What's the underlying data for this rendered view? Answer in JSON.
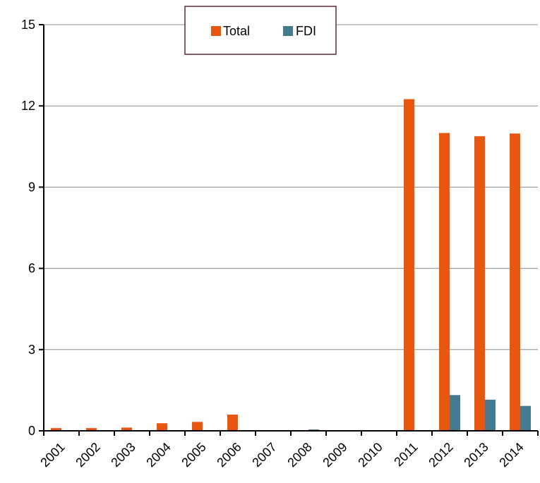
{
  "chart_data": {
    "type": "bar",
    "categories": [
      "2001",
      "2002",
      "2003",
      "2004",
      "2005",
      "2006",
      "2007",
      "2008",
      "2009",
      "2010",
      "2011",
      "2012",
      "2013",
      "2014"
    ],
    "series": [
      {
        "name": "Total",
        "color": "#E8570F",
        "values": [
          0.1,
          0.1,
          0.12,
          0.28,
          0.33,
          0.6,
          0,
          0,
          0,
          0,
          12.25,
          11.0,
          10.88,
          10.98
        ]
      },
      {
        "name": "FDI",
        "color": "#457B91",
        "values": [
          0,
          0,
          0,
          0,
          0,
          0,
          0,
          0.05,
          0,
          0,
          0,
          1.32,
          1.15,
          0.92
        ]
      }
    ],
    "ylim": [
      0,
      15
    ],
    "yticks": [
      "0",
      "3",
      "6",
      "9",
      "12",
      "15"
    ],
    "grid": true,
    "legend_position": "top-center"
  }
}
